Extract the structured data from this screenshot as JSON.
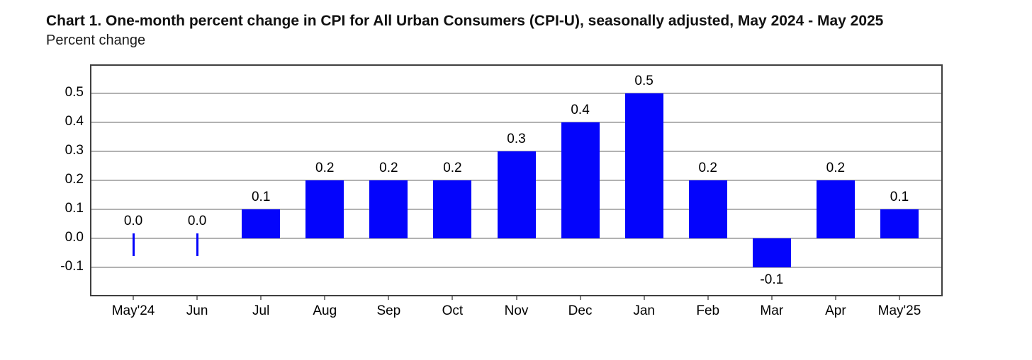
{
  "chart_data": {
    "type": "bar",
    "title": "Chart 1. One-month percent change in CPI for All Urban Consumers (CPI-U), seasonally adjusted, May 2024 - May 2025",
    "subtitle": "Percent change",
    "categories": [
      "May'24",
      "Jun",
      "Jul",
      "Aug",
      "Sep",
      "Oct",
      "Nov",
      "Dec",
      "Jan",
      "Feb",
      "Mar",
      "Apr",
      "May'25"
    ],
    "values": [
      0.0,
      0.0,
      0.1,
      0.2,
      0.2,
      0.2,
      0.3,
      0.4,
      0.5,
      0.2,
      -0.1,
      0.2,
      0.1
    ],
    "bar_labels": [
      "0.0",
      "0.0",
      "0.1",
      "0.2",
      "0.2",
      "0.2",
      "0.3",
      "0.4",
      "0.5",
      "0.2",
      "-0.1",
      "0.2",
      "0.1"
    ],
    "xlabel": "",
    "ylabel": "Percent change",
    "ylim": [
      -0.2,
      0.6
    ],
    "y_tick_values": [
      0.5,
      0.4,
      0.3,
      0.2,
      0.1,
      0.0,
      -0.1
    ],
    "y_tick_labels": [
      "0.5",
      "0.4",
      "0.3",
      "0.2",
      "0.1",
      "0.0",
      "-0.1"
    ],
    "grid": true,
    "legend": "none",
    "colors": {
      "bar": "#0404fc",
      "gridline": "#b2b2b2",
      "plot_border": "#3f3f3f",
      "text": "#000000",
      "background": "#ffffff"
    }
  }
}
